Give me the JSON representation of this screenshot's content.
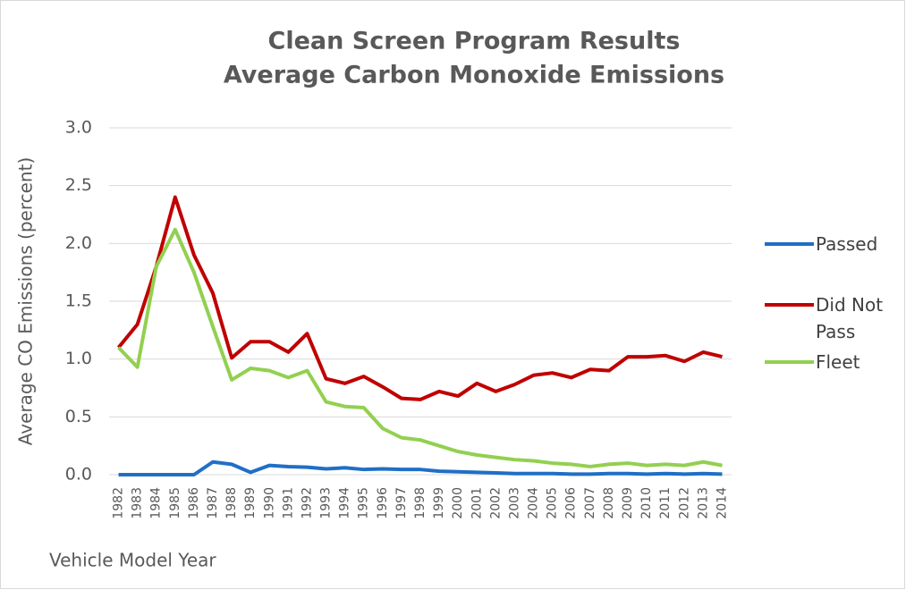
{
  "chart_data": {
    "type": "line",
    "title": "Clean Screen Program Results",
    "subtitle": "Average Carbon Monoxide Emissions",
    "ylabel": "Average CO Emissions (percent)",
    "xlabel": "Vehicle Model Year",
    "categories": [
      "1982",
      "1983",
      "1984",
      "1985",
      "1986",
      "1987",
      "1988",
      "1989",
      "1990",
      "1991",
      "1992",
      "1993",
      "1994",
      "1995",
      "1996",
      "1997",
      "1998",
      "1999",
      "2000",
      "2001",
      "2002",
      "2003",
      "2004",
      "2005",
      "2006",
      "2007",
      "2008",
      "2009",
      "2010",
      "2011",
      "2012",
      "2013",
      "2014"
    ],
    "series": [
      {
        "name": "Passed",
        "color": "#1f6fc5",
        "values": [
          0,
          0,
          0,
          0,
          0,
          0.11,
          0.09,
          0.02,
          0.08,
          0.07,
          0.065,
          0.05,
          0.06,
          0.045,
          0.05,
          0.045,
          0.045,
          0.03,
          0.025,
          0.02,
          0.015,
          0.01,
          0.01,
          0.01,
          0.005,
          0.005,
          0.01,
          0.01,
          0.005,
          0.01,
          0.005,
          0.01,
          0.005
        ]
      },
      {
        "name": "Did Not Pass",
        "color": "#c00000",
        "values": [
          1.1,
          1.3,
          1.8,
          2.4,
          1.9,
          1.57,
          1.01,
          1.15,
          1.15,
          1.06,
          1.22,
          0.83,
          0.79,
          0.85,
          0.76,
          0.66,
          0.65,
          0.72,
          0.68,
          0.79,
          0.72,
          0.78,
          0.86,
          0.88,
          0.84,
          0.91,
          0.9,
          1.02,
          1.02,
          1.03,
          0.98,
          1.06,
          1.02
        ]
      },
      {
        "name": "Fleet",
        "color": "#92d050",
        "values": [
          1.1,
          0.93,
          1.8,
          2.12,
          1.75,
          1.28,
          0.82,
          0.92,
          0.9,
          0.84,
          0.9,
          0.63,
          0.59,
          0.58,
          0.4,
          0.32,
          0.3,
          0.25,
          0.2,
          0.17,
          0.15,
          0.13,
          0.12,
          0.1,
          0.09,
          0.07,
          0.09,
          0.1,
          0.08,
          0.09,
          0.08,
          0.11,
          0.08
        ]
      }
    ],
    "ylim": [
      0,
      3
    ],
    "yticks": [
      {
        "value": 0,
        "label": "0.0"
      },
      0.5,
      {
        "value": 1,
        "label": "1.0"
      },
      1.5,
      {
        "value": 2,
        "label": "2.0"
      },
      2.5,
      {
        "value": 3,
        "label": "3.0"
      }
    ],
    "grid": true,
    "legend": "right"
  }
}
